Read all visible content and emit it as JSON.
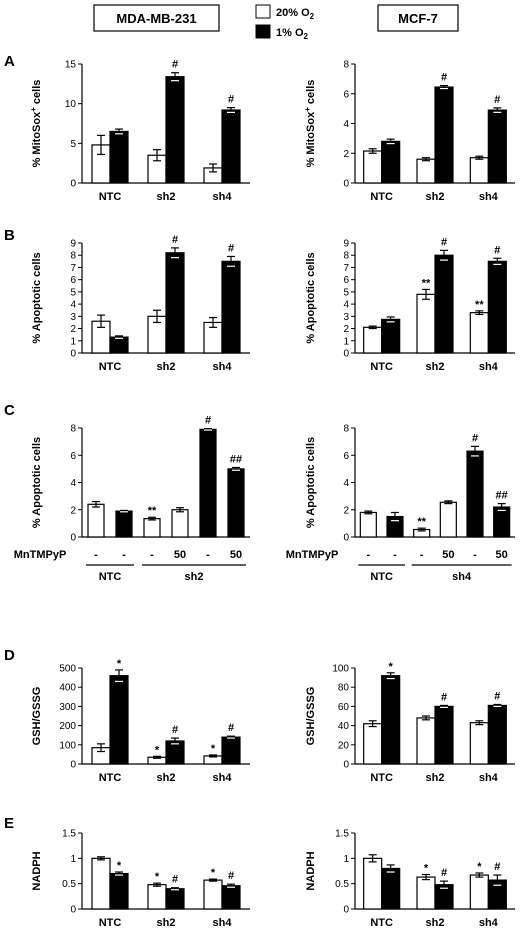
{
  "header": {
    "left_title": "MDA-MB-231",
    "right_title": "MCF-7",
    "legend": [
      {
        "label": "20% O2",
        "color": "#ffffff"
      },
      {
        "label": "1% O2",
        "color": "#000000"
      }
    ]
  },
  "panel_labels": [
    "A",
    "B",
    "C",
    "D",
    "E"
  ],
  "chart_data": [
    {
      "id": "A-left",
      "type": "bar",
      "panel": "A",
      "side": "left",
      "ylabel": "% MitoSox+ cells",
      "ylim": [
        0,
        15
      ],
      "yticks": [
        0,
        5,
        10,
        15
      ],
      "groups": [
        {
          "category": "NTC",
          "bars": [
            {
              "series": "20% O2",
              "value": 4.8,
              "err": 1.2,
              "sig": ""
            },
            {
              "series": "1% O2",
              "value": 6.5,
              "err": 0.3,
              "sig": ""
            }
          ]
        },
        {
          "category": "sh2",
          "bars": [
            {
              "series": "20% O2",
              "value": 3.5,
              "err": 0.7,
              "sig": ""
            },
            {
              "series": "1% O2",
              "value": 13.4,
              "err": 0.5,
              "sig": "#"
            }
          ]
        },
        {
          "category": "sh4",
          "bars": [
            {
              "series": "20% O2",
              "value": 1.9,
              "err": 0.5,
              "sig": ""
            },
            {
              "series": "1% O2",
              "value": 9.2,
              "err": 0.3,
              "sig": "#"
            }
          ]
        }
      ]
    },
    {
      "id": "A-right",
      "type": "bar",
      "panel": "A",
      "side": "right",
      "ylabel": "% MitoSox+ cells",
      "ylim": [
        0,
        8
      ],
      "yticks": [
        0,
        2,
        4,
        6,
        8
      ],
      "groups": [
        {
          "category": "NTC",
          "bars": [
            {
              "series": "20% O2",
              "value": 2.15,
              "err": 0.15,
              "sig": ""
            },
            {
              "series": "1% O2",
              "value": 2.8,
              "err": 0.15,
              "sig": ""
            }
          ]
        },
        {
          "category": "sh2",
          "bars": [
            {
              "series": "20% O2",
              "value": 1.6,
              "err": 0.1,
              "sig": ""
            },
            {
              "series": "1% O2",
              "value": 6.45,
              "err": 0.1,
              "sig": "#"
            }
          ]
        },
        {
          "category": "sh4",
          "bars": [
            {
              "series": "20% O2",
              "value": 1.7,
              "err": 0.1,
              "sig": ""
            },
            {
              "series": "1% O2",
              "value": 4.9,
              "err": 0.15,
              "sig": "#"
            }
          ]
        }
      ]
    },
    {
      "id": "B-left",
      "type": "bar",
      "panel": "B",
      "side": "left",
      "ylabel": "% Apoptotic cells",
      "ylim": [
        0,
        9
      ],
      "yticks": [
        0,
        1,
        2,
        3,
        4,
        5,
        6,
        7,
        8,
        9
      ],
      "groups": [
        {
          "category": "NTC",
          "bars": [
            {
              "series": "20% O2",
              "value": 2.6,
              "err": 0.5,
              "sig": ""
            },
            {
              "series": "1% O2",
              "value": 1.3,
              "err": 0.1,
              "sig": ""
            }
          ]
        },
        {
          "category": "sh2",
          "bars": [
            {
              "series": "20% O2",
              "value": 3.0,
              "err": 0.5,
              "sig": ""
            },
            {
              "series": "1% O2",
              "value": 8.2,
              "err": 0.4,
              "sig": "#"
            }
          ]
        },
        {
          "category": "sh4",
          "bars": [
            {
              "series": "20% O2",
              "value": 2.5,
              "err": 0.4,
              "sig": ""
            },
            {
              "series": "1% O2",
              "value": 7.5,
              "err": 0.4,
              "sig": "#"
            }
          ]
        }
      ]
    },
    {
      "id": "B-right",
      "type": "bar",
      "panel": "B",
      "side": "right",
      "ylabel": "% Apoptotic cells",
      "ylim": [
        0,
        9
      ],
      "yticks": [
        0,
        1,
        2,
        3,
        4,
        5,
        6,
        7,
        8,
        9
      ],
      "groups": [
        {
          "category": "NTC",
          "bars": [
            {
              "series": "20% O2",
              "value": 2.1,
              "err": 0.1,
              "sig": ""
            },
            {
              "series": "1% O2",
              "value": 2.75,
              "err": 0.2,
              "sig": ""
            }
          ]
        },
        {
          "category": "sh2",
          "bars": [
            {
              "series": "20% O2",
              "value": 4.8,
              "err": 0.4,
              "sig": "**"
            },
            {
              "series": "1% O2",
              "value": 8.0,
              "err": 0.4,
              "sig": "#"
            }
          ]
        },
        {
          "category": "sh4",
          "bars": [
            {
              "series": "20% O2",
              "value": 3.3,
              "err": 0.15,
              "sig": "**"
            },
            {
              "series": "1% O2",
              "value": 7.5,
              "err": 0.25,
              "sig": "#"
            }
          ]
        }
      ]
    },
    {
      "id": "C-left",
      "type": "bar",
      "panel": "C",
      "side": "left",
      "ylabel": "% Apoptotic cells",
      "ylim": [
        0,
        8
      ],
      "yticks": [
        0,
        2,
        4,
        6,
        8
      ],
      "treatment_label": "MnTMPyP",
      "treatments": [
        "-",
        "-",
        "-",
        "50",
        "-",
        "50"
      ],
      "group_labels": [
        "NTC",
        "sh2"
      ],
      "bars": [
        {
          "series": "20% O2",
          "value": 2.4,
          "err": 0.2,
          "sig": ""
        },
        {
          "series": "1% O2",
          "value": 1.9,
          "err": 0.05,
          "sig": ""
        },
        {
          "series": "20% O2",
          "value": 1.35,
          "err": 0.1,
          "sig": "**"
        },
        {
          "series": "20% O2",
          "value": 2.0,
          "err": 0.15,
          "sig": ""
        },
        {
          "series": "1% O2",
          "value": 7.9,
          "err": 0.05,
          "sig": "#"
        },
        {
          "series": "1% O2",
          "value": 5.0,
          "err": 0.1,
          "sig": "##"
        }
      ]
    },
    {
      "id": "C-right",
      "type": "bar",
      "panel": "C",
      "side": "right",
      "ylabel": "% Apoptotic cells",
      "ylim": [
        0,
        8
      ],
      "yticks": [
        0,
        2,
        4,
        6,
        8
      ],
      "treatment_label": "MnTMPyP",
      "treatments": [
        "-",
        "-",
        "-",
        "50",
        "-",
        "50"
      ],
      "group_labels": [
        "NTC",
        "sh4"
      ],
      "bars": [
        {
          "series": "20% O2",
          "value": 1.8,
          "err": 0.1,
          "sig": ""
        },
        {
          "series": "1% O2",
          "value": 1.5,
          "err": 0.3,
          "sig": ""
        },
        {
          "series": "20% O2",
          "value": 0.55,
          "err": 0.1,
          "sig": "**"
        },
        {
          "series": "20% O2",
          "value": 2.55,
          "err": 0.1,
          "sig": ""
        },
        {
          "series": "1% O2",
          "value": 6.3,
          "err": 0.35,
          "sig": "#"
        },
        {
          "series": "1% O2",
          "value": 2.2,
          "err": 0.25,
          "sig": "##"
        }
      ]
    },
    {
      "id": "D-left",
      "type": "bar",
      "panel": "D",
      "side": "left",
      "ylabel": "GSH/GSSG",
      "ylim": [
        0,
        500
      ],
      "yticks": [
        0,
        100,
        200,
        300,
        400,
        500
      ],
      "groups": [
        {
          "category": "NTC",
          "bars": [
            {
              "series": "20% O2",
              "value": 85,
              "err": 20,
              "sig": ""
            },
            {
              "series": "1% O2",
              "value": 460,
              "err": 30,
              "sig": "*"
            }
          ]
        },
        {
          "category": "sh2",
          "bars": [
            {
              "series": "20% O2",
              "value": 35,
              "err": 5,
              "sig": "*"
            },
            {
              "series": "1% O2",
              "value": 120,
              "err": 15,
              "sig": "#"
            }
          ]
        },
        {
          "category": "sh4",
          "bars": [
            {
              "series": "20% O2",
              "value": 42,
              "err": 5,
              "sig": "*"
            },
            {
              "series": "1% O2",
              "value": 140,
              "err": 5,
              "sig": "#"
            }
          ]
        }
      ]
    },
    {
      "id": "D-right",
      "type": "bar",
      "panel": "D",
      "side": "right",
      "ylabel": "GSH/GSSG",
      "ylim": [
        0,
        100
      ],
      "yticks": [
        0,
        20,
        40,
        60,
        80,
        100
      ],
      "groups": [
        {
          "category": "NTC",
          "bars": [
            {
              "series": "20% O2",
              "value": 42,
              "err": 3,
              "sig": ""
            },
            {
              "series": "1% O2",
              "value": 92,
              "err": 3,
              "sig": "*"
            }
          ]
        },
        {
          "category": "sh2",
          "bars": [
            {
              "series": "20% O2",
              "value": 48,
              "err": 2,
              "sig": ""
            },
            {
              "series": "1% O2",
              "value": 60,
              "err": 1,
              "sig": "#"
            }
          ]
        },
        {
          "category": "sh4",
          "bars": [
            {
              "series": "20% O2",
              "value": 43,
              "err": 2,
              "sig": ""
            },
            {
              "series": "1% O2",
              "value": 61,
              "err": 1,
              "sig": "#"
            }
          ]
        }
      ]
    },
    {
      "id": "E-left",
      "type": "bar",
      "panel": "E",
      "side": "left",
      "ylabel": "NADPH",
      "ylim": [
        0,
        1.5
      ],
      "yticks": [
        "0",
        "0.5",
        "1",
        "1.5"
      ],
      "groups": [
        {
          "category": "NTC",
          "bars": [
            {
              "series": "20% O2",
              "value": 1.0,
              "err": 0.03,
              "sig": ""
            },
            {
              "series": "1% O2",
              "value": 0.7,
              "err": 0.03,
              "sig": "*"
            }
          ]
        },
        {
          "category": "sh2",
          "bars": [
            {
              "series": "20% O2",
              "value": 0.48,
              "err": 0.03,
              "sig": "*"
            },
            {
              "series": "1% O2",
              "value": 0.4,
              "err": 0.02,
              "sig": "#"
            }
          ]
        },
        {
          "category": "sh4",
          "bars": [
            {
              "series": "20% O2",
              "value": 0.57,
              "err": 0.02,
              "sig": "*"
            },
            {
              "series": "1% O2",
              "value": 0.46,
              "err": 0.03,
              "sig": "#"
            }
          ]
        }
      ]
    },
    {
      "id": "E-right",
      "type": "bar",
      "panel": "E",
      "side": "right",
      "ylabel": "NADPH",
      "ylim": [
        0,
        1.5
      ],
      "yticks": [
        "0",
        "0.5",
        "1",
        "1.5"
      ],
      "groups": [
        {
          "category": "NTC",
          "bars": [
            {
              "series": "20% O2",
              "value": 1.0,
              "err": 0.07,
              "sig": ""
            },
            {
              "series": "1% O2",
              "value": 0.8,
              "err": 0.07,
              "sig": ""
            }
          ]
        },
        {
          "category": "sh2",
          "bars": [
            {
              "series": "20% O2",
              "value": 0.63,
              "err": 0.05,
              "sig": "*"
            },
            {
              "series": "1% O2",
              "value": 0.48,
              "err": 0.07,
              "sig": "#"
            }
          ]
        },
        {
          "category": "sh4",
          "bars": [
            {
              "series": "20% O2",
              "value": 0.67,
              "err": 0.04,
              "sig": "*"
            },
            {
              "series": "1% O2",
              "value": 0.57,
              "err": 0.1,
              "sig": "#"
            }
          ]
        }
      ]
    }
  ]
}
